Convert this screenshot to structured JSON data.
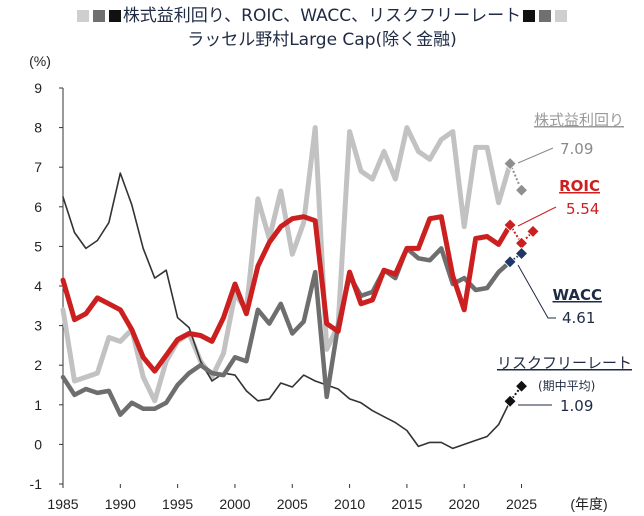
{
  "title": {
    "line1": "株式益利回り、ROIC、WACC、リスクフリーレート",
    "line2": "ラッセル野村Large Cap(除く金融)",
    "square_colors_left": [
      "#cfcfcf",
      "#707070",
      "#111111"
    ],
    "square_colors_right": [
      "#111111",
      "#707070",
      "#cfcfcf"
    ]
  },
  "chart_data": {
    "type": "line",
    "ylabel": "(%)",
    "xlabel": "(年度)",
    "xlim": [
      1985,
      2026
    ],
    "ylim": [
      -1,
      9
    ],
    "x_ticks": [
      1985,
      1990,
      1995,
      2000,
      2005,
      2010,
      2015,
      2020,
      2025
    ],
    "y_ticks": [
      -1,
      0,
      1,
      2,
      3,
      4,
      5,
      6,
      7,
      8,
      9
    ],
    "negative_tick_color": "#cc0000",
    "x": [
      1985,
      1986,
      1987,
      1988,
      1989,
      1990,
      1991,
      1992,
      1993,
      1994,
      1995,
      1996,
      1997,
      1998,
      1999,
      2000,
      2001,
      2002,
      2003,
      2004,
      2005,
      2006,
      2007,
      2008,
      2009,
      2010,
      2011,
      2012,
      2013,
      2014,
      2015,
      2016,
      2017,
      2018,
      2019,
      2020,
      2021,
      2022,
      2023,
      2024
    ],
    "series": [
      {
        "name": "株式益利回り",
        "color": "#c2c2c2",
        "values": [
          3.4,
          1.6,
          1.7,
          1.8,
          2.7,
          2.6,
          2.9,
          1.7,
          1.1,
          2.1,
          2.6,
          2.8,
          2.1,
          1.7,
          2.3,
          3.8,
          3.4,
          6.2,
          5.2,
          6.4,
          4.8,
          5.6,
          8.0,
          2.4,
          3.0,
          7.9,
          6.9,
          6.7,
          7.4,
          6.7,
          8.0,
          7.4,
          7.2,
          7.7,
          7.9,
          5.5,
          7.5,
          7.5,
          6.1,
          7.09
        ],
        "end_label": "7.09",
        "forecast": [
          7.09,
          6.42
        ],
        "marker_color": "#8f8f8f"
      },
      {
        "name": "ROIC",
        "color": "#cc1f1f",
        "values": [
          4.15,
          3.15,
          3.3,
          3.7,
          3.55,
          3.4,
          2.9,
          2.2,
          1.85,
          2.25,
          2.65,
          2.8,
          2.75,
          2.6,
          3.2,
          4.05,
          3.3,
          4.5,
          5.1,
          5.5,
          5.7,
          5.75,
          5.65,
          3.05,
          2.85,
          4.35,
          3.55,
          3.65,
          4.4,
          4.3,
          4.95,
          4.95,
          5.7,
          5.75,
          4.25,
          3.4,
          5.2,
          5.25,
          5.05,
          5.54
        ],
        "end_label": "5.54",
        "forecast": [
          5.54,
          5.08,
          5.38
        ],
        "marker_color": "#cc1f1f"
      },
      {
        "name": "WACC",
        "color": "#6e6e6e",
        "values": [
          1.7,
          1.25,
          1.4,
          1.3,
          1.35,
          0.75,
          1.05,
          0.9,
          0.9,
          1.05,
          1.5,
          1.8,
          2.0,
          1.8,
          1.75,
          2.2,
          2.1,
          3.4,
          3.05,
          3.55,
          2.8,
          3.1,
          4.35,
          1.2,
          3.0,
          4.25,
          3.75,
          3.85,
          4.4,
          4.2,
          4.95,
          4.7,
          4.65,
          4.95,
          4.05,
          4.2,
          3.9,
          3.95,
          4.35,
          4.61
        ],
        "end_label": "4.61",
        "forecast": [
          4.61,
          4.82
        ],
        "marker_color": "#1f3864"
      },
      {
        "name": "リスクフリーレート",
        "sub_label": "(期中平均)",
        "color": "#333333",
        "values": [
          6.25,
          5.35,
          4.95,
          5.15,
          5.6,
          6.85,
          6.05,
          4.95,
          4.2,
          4.4,
          3.2,
          2.95,
          2.1,
          1.6,
          1.8,
          1.75,
          1.35,
          1.1,
          1.15,
          1.55,
          1.45,
          1.75,
          1.6,
          1.5,
          1.4,
          1.15,
          1.05,
          0.85,
          0.7,
          0.55,
          0.35,
          -0.05,
          0.05,
          0.05,
          -0.1,
          0.0,
          0.1,
          0.2,
          0.5,
          1.09
        ],
        "end_label": "1.09",
        "forecast": [
          1.09,
          1.47
        ],
        "marker_color": "#111111"
      }
    ]
  }
}
